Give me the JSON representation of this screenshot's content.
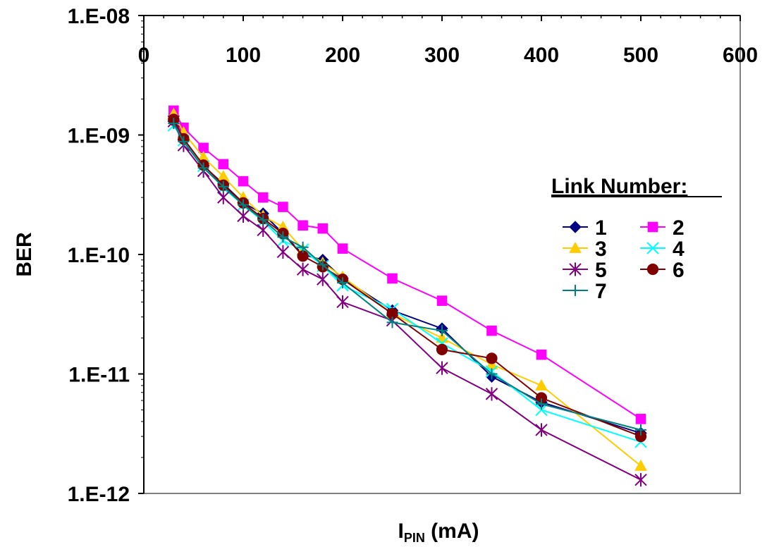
{
  "chart_data": {
    "type": "line",
    "title": "",
    "xlabel_main": "I",
    "xlabel_sub": "PIN",
    "xlabel_unit": " (mA)",
    "ylabel": "BER",
    "xlim": [
      0,
      600
    ],
    "ylim": [
      1e-12,
      1e-08
    ],
    "y_scale": "log",
    "x_ticks": [
      0,
      100,
      200,
      300,
      400,
      500,
      600
    ],
    "x_tick_labels": [
      "0",
      "100",
      "200",
      "300",
      "400",
      "500",
      "600"
    ],
    "y_ticks": [
      1e-08,
      1e-09,
      1e-10,
      1e-11,
      1e-12
    ],
    "y_tick_labels": [
      "1.E-08",
      "1.E-09",
      "1.E-10",
      "1.E-11",
      "1.E-12"
    ],
    "grid": false,
    "legend": {
      "title": "Link Number:",
      "position": "right"
    },
    "series": [
      {
        "name": "1",
        "color": "#000080",
        "marker": "diamond",
        "points": [
          [
            30,
            1.3e-09
          ],
          [
            40,
            9.2e-10
          ],
          [
            60,
            5.5e-10
          ],
          [
            80,
            3.9e-10
          ],
          [
            100,
            2.7e-10
          ],
          [
            120,
            2.2e-10
          ],
          [
            140,
            1.5e-10
          ],
          [
            160,
            1e-10
          ],
          [
            180,
            9e-11
          ],
          [
            200,
            6.3e-11
          ],
          [
            250,
            3.4e-11
          ],
          [
            300,
            2.4e-11
          ],
          [
            350,
            9.5e-12
          ],
          [
            400,
            5.8e-12
          ],
          [
            500,
            3.2e-12
          ]
        ]
      },
      {
        "name": "2",
        "color": "#ff00ff",
        "marker": "square",
        "points": [
          [
            30,
            1.6e-09
          ],
          [
            40,
            1.15e-09
          ],
          [
            60,
            7.8e-10
          ],
          [
            80,
            5.7e-10
          ],
          [
            100,
            4.1e-10
          ],
          [
            120,
            3e-10
          ],
          [
            140,
            2.5e-10
          ],
          [
            160,
            1.75e-10
          ],
          [
            180,
            1.65e-10
          ],
          [
            200,
            1.12e-10
          ],
          [
            250,
            6.3e-11
          ],
          [
            300,
            4.1e-11
          ],
          [
            350,
            2.3e-11
          ],
          [
            400,
            1.45e-11
          ],
          [
            500,
            4.2e-12
          ]
        ]
      },
      {
        "name": "3",
        "color": "#ffcc00",
        "marker": "triangle",
        "points": [
          [
            30,
            1.5e-09
          ],
          [
            40,
            1.05e-09
          ],
          [
            60,
            6.5e-10
          ],
          [
            80,
            4.5e-10
          ],
          [
            100,
            3e-10
          ],
          [
            120,
            2.1e-10
          ],
          [
            140,
            1.7e-10
          ],
          [
            160,
            1.1e-10
          ],
          [
            180,
            8.5e-11
          ],
          [
            200,
            6.5e-11
          ],
          [
            250,
            3.2e-11
          ],
          [
            300,
            2e-11
          ],
          [
            350,
            1.2e-11
          ],
          [
            400,
            8e-12
          ],
          [
            500,
            1.7e-12
          ]
        ]
      },
      {
        "name": "4",
        "color": "#00ffff",
        "marker": "x",
        "points": [
          [
            30,
            1.2e-09
          ],
          [
            40,
            9e-10
          ],
          [
            60,
            5.5e-10
          ],
          [
            80,
            3.6e-10
          ],
          [
            100,
            2.6e-10
          ],
          [
            120,
            1.9e-10
          ],
          [
            140,
            1.3e-10
          ],
          [
            160,
            1.1e-10
          ],
          [
            180,
            8e-11
          ],
          [
            200,
            5.5e-11
          ],
          [
            250,
            3.5e-11
          ],
          [
            300,
            1.8e-11
          ],
          [
            350,
            1.05e-11
          ],
          [
            400,
            5e-12
          ],
          [
            500,
            2.7e-12
          ]
        ]
      },
      {
        "name": "5",
        "color": "#800080",
        "marker": "star",
        "points": [
          [
            30,
            1.3e-09
          ],
          [
            40,
            8.2e-10
          ],
          [
            60,
            5e-10
          ],
          [
            80,
            3e-10
          ],
          [
            100,
            2.1e-10
          ],
          [
            120,
            1.6e-10
          ],
          [
            140,
            1.05e-10
          ],
          [
            160,
            7.5e-11
          ],
          [
            180,
            6.2e-11
          ],
          [
            200,
            4e-11
          ],
          [
            250,
            2.8e-11
          ],
          [
            300,
            1.12e-11
          ],
          [
            350,
            6.8e-12
          ],
          [
            400,
            3.4e-12
          ],
          [
            500,
            1.3e-12
          ]
        ]
      },
      {
        "name": "6",
        "color": "#800000",
        "marker": "circle",
        "points": [
          [
            30,
            1.35e-09
          ],
          [
            40,
            9.3e-10
          ],
          [
            60,
            5.6e-10
          ],
          [
            80,
            3.8e-10
          ],
          [
            100,
            2.7e-10
          ],
          [
            120,
            2e-10
          ],
          [
            140,
            1.5e-10
          ],
          [
            160,
            9.7e-11
          ],
          [
            180,
            7.9e-11
          ],
          [
            200,
            6.2e-11
          ],
          [
            250,
            3.2e-11
          ],
          [
            300,
            1.6e-11
          ],
          [
            350,
            1.35e-11
          ],
          [
            400,
            6.3e-12
          ],
          [
            500,
            3e-12
          ]
        ]
      },
      {
        "name": "7",
        "color": "#008080",
        "marker": "plus",
        "points": [
          [
            30,
            1.25e-09
          ],
          [
            40,
            8.8e-10
          ],
          [
            60,
            5.3e-10
          ],
          [
            80,
            3.7e-10
          ],
          [
            100,
            2.6e-10
          ],
          [
            120,
            1.95e-10
          ],
          [
            140,
            1.4e-10
          ],
          [
            160,
            1.15e-10
          ],
          [
            180,
            8.2e-11
          ],
          [
            200,
            5.8e-11
          ],
          [
            250,
            2.7e-11
          ],
          [
            300,
            2.3e-11
          ],
          [
            350,
            1e-11
          ],
          [
            400,
            5.6e-12
          ],
          [
            500,
            3.4e-12
          ]
        ]
      }
    ]
  }
}
